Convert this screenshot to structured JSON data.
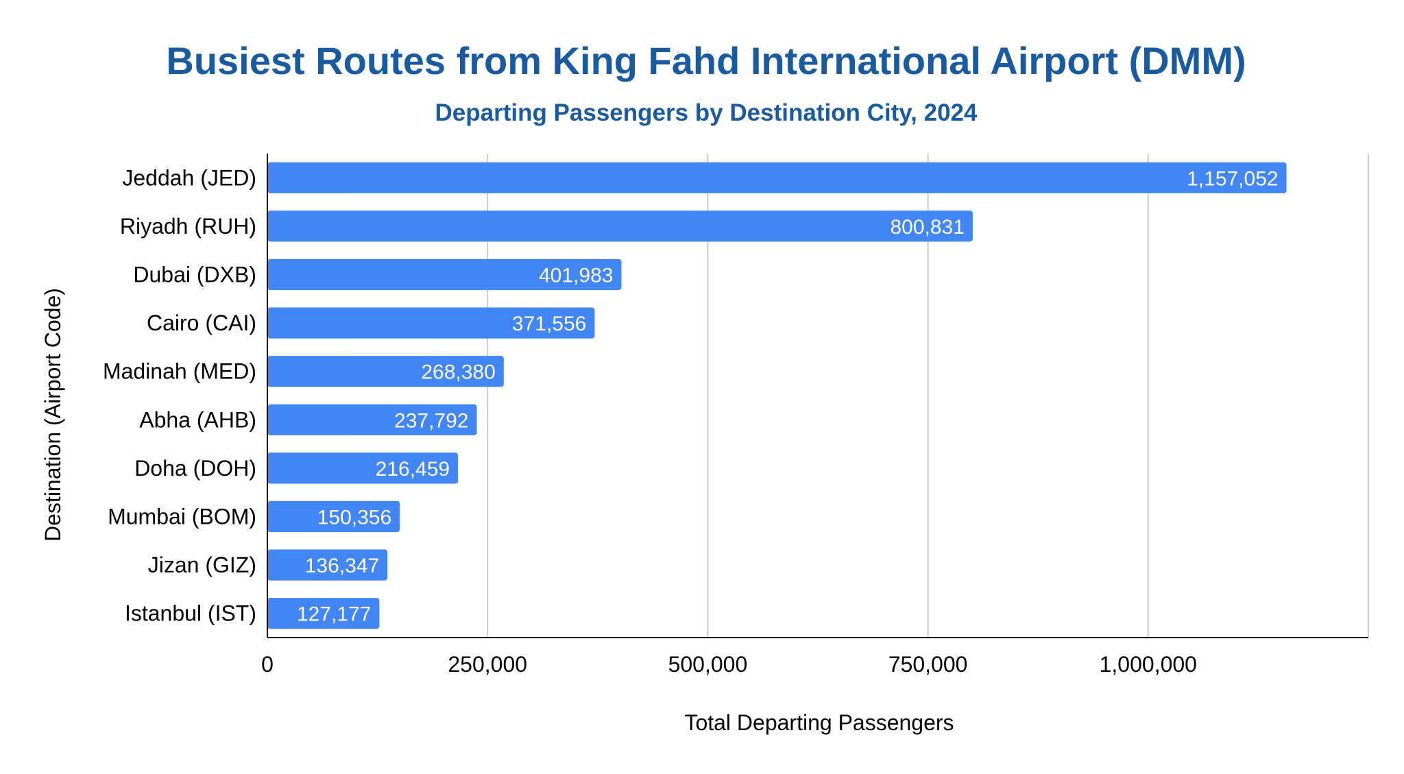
{
  "chart_data": {
    "type": "bar",
    "orientation": "horizontal",
    "title": "Busiest Routes from King Fahd International Airport (DMM)",
    "subtitle": "Departing Passengers by Destination City, 2024",
    "xlabel": "Total Departing Passengers",
    "ylabel": "Destination (Airport Code)",
    "categories": [
      "Jeddah (JED)",
      "Riyadh (RUH)",
      "Dubai (DXB)",
      "Cairo (CAI)",
      "Madinah (MED)",
      "Abha (AHB)",
      "Doha (DOH)",
      "Mumbai (BOM)",
      "Jizan (GIZ)",
      "Istanbul (IST)"
    ],
    "values": [
      1157052,
      800831,
      401983,
      371556,
      268380,
      237792,
      216459,
      150356,
      136347,
      127177
    ],
    "data_labels": [
      "1,157,052",
      "800,831",
      "401,983",
      "371,556",
      "268,380",
      "237,792",
      "216,459",
      "150,356",
      "136,347",
      "127,177"
    ],
    "xlim": [
      0,
      1250000
    ],
    "x_ticks": [
      0,
      250000,
      500000,
      750000,
      1000000
    ],
    "x_tick_labels": [
      "0",
      "250,000",
      "500,000",
      "750,000",
      "1,000,000"
    ],
    "grid": true,
    "legend": "none",
    "colors": {
      "bar": "#4285f4",
      "title": "#1a5aa0",
      "subtitle": "#1a5aa0",
      "grid": "#cccccc",
      "axis": "#000000"
    }
  }
}
